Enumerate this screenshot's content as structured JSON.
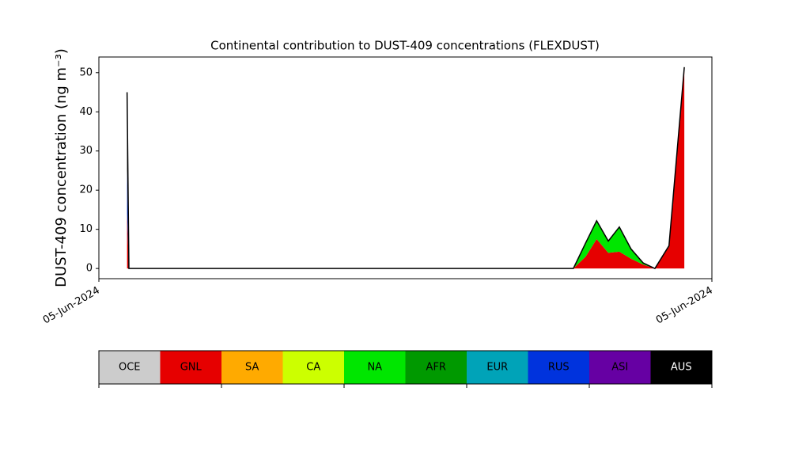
{
  "chart_data": {
    "type": "stacked_area",
    "title": "Continental contribution to DUST-409 concentrations (FLEXDUST)",
    "y_label": "DUST-409 concentration (ng m⁻³)",
    "x": [
      4.6,
      4.9,
      77.4,
      79.4,
      81.2,
      83.1,
      84.9,
      86.8,
      88.8,
      90.7,
      93.0,
      95.5
    ],
    "xlim": [
      0,
      100
    ],
    "xticks": [
      {
        "value": 0,
        "label": "05-Jun-2024"
      },
      {
        "value": 100,
        "label": "05-Jun-2024"
      }
    ],
    "ylim": [
      -2.6,
      54
    ],
    "yticks": [
      0,
      10,
      20,
      30,
      40,
      50
    ],
    "series": [
      {
        "name": "OCE",
        "color": "#cccccc",
        "values": [
          0,
          0,
          0,
          0,
          0,
          0,
          0,
          0,
          0,
          0,
          0,
          0
        ]
      },
      {
        "name": "GNL",
        "color": "#e60000",
        "values": [
          14,
          0,
          0,
          3,
          7.5,
          4,
          4.3,
          2.5,
          1,
          0,
          5.5,
          51.4
        ]
      },
      {
        "name": "SA",
        "color": "#ffaa00",
        "values": [
          0,
          0,
          0,
          0,
          0,
          0,
          0,
          0,
          0,
          0,
          0,
          0
        ]
      },
      {
        "name": "CA",
        "color": "#ccff00",
        "values": [
          0,
          0,
          0,
          0,
          0,
          0,
          0,
          0,
          0,
          0,
          0,
          0
        ]
      },
      {
        "name": "NA",
        "color": "#00e600",
        "values": [
          0,
          0,
          0,
          3.5,
          4.7,
          3,
          6.3,
          2.5,
          0.4,
          0,
          0.3,
          0
        ]
      },
      {
        "name": "AFR",
        "color": "#009900",
        "values": [
          0,
          0,
          0,
          0,
          0,
          0,
          0,
          0,
          0,
          0,
          0,
          0
        ]
      },
      {
        "name": "EUR",
        "color": "#00a3b8",
        "values": [
          0,
          0,
          0,
          0,
          0,
          0,
          0,
          0,
          0,
          0,
          0,
          0
        ]
      },
      {
        "name": "RUS",
        "color": "#0033dd",
        "values": [
          11,
          0,
          0,
          0,
          0,
          0,
          0,
          0,
          0,
          0,
          0,
          0
        ]
      },
      {
        "name": "ASI",
        "color": "#6600a3",
        "values": [
          0,
          0,
          0,
          0,
          0,
          0,
          0,
          0,
          0,
          0,
          0,
          0
        ]
      },
      {
        "name": "AUS",
        "color": "#000000",
        "values": [
          20,
          0,
          0,
          0,
          0,
          0,
          0,
          0,
          0,
          0,
          0,
          0
        ]
      }
    ]
  }
}
